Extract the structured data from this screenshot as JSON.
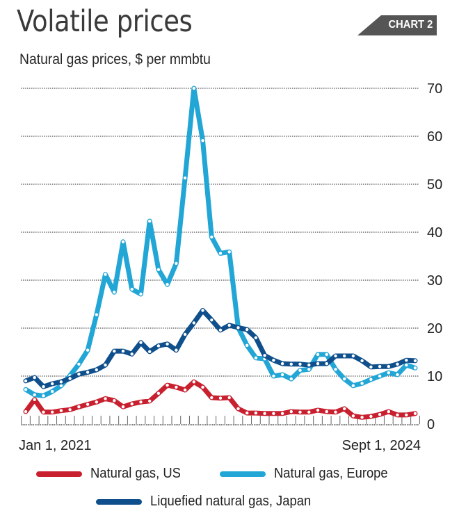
{
  "header": {
    "title": "Volatile prices",
    "badge": "CHART 2",
    "subtitle": "Natural gas prices, $ per mmbtu"
  },
  "colors": {
    "us": "#c8202f",
    "europe": "#22a6d6",
    "japan": "#0f4f8c",
    "badge": "#555555",
    "grid": "#555555"
  },
  "chart_data": {
    "type": "line",
    "title": "Volatile prices",
    "subtitle": "Natural gas prices, $ per mmbtu",
    "xlabel": "",
    "ylabel": "$ per mmbtu",
    "x_start": "Jan 1, 2021",
    "x_end": "Sept 1, 2024",
    "x_frequency": "monthly",
    "x_tick_labels": [
      "Jan 1, 2021",
      "Sept 1, 2024"
    ],
    "ylim": [
      0,
      70
    ],
    "y_ticks": [
      0,
      10,
      20,
      30,
      40,
      50,
      60,
      70
    ],
    "y_axis_side": "right",
    "grid": true,
    "legend_position": "bottom",
    "series": [
      {
        "name": "Natural gas, US",
        "color": "#c8202f",
        "values": [
          2.6,
          5.1,
          2.5,
          2.5,
          2.8,
          3.0,
          3.6,
          4.1,
          4.6,
          5.3,
          4.9,
          3.6,
          4.2,
          4.6,
          4.8,
          6.4,
          8.1,
          7.7,
          7.1,
          8.8,
          7.7,
          5.5,
          5.4,
          5.5,
          3.2,
          2.3,
          2.3,
          2.2,
          2.2,
          2.2,
          2.6,
          2.5,
          2.5,
          2.9,
          2.6,
          2.5,
          3.2,
          1.7,
          1.4,
          1.6,
          2.0,
          2.6,
          1.9,
          1.9,
          2.2
        ]
      },
      {
        "name": "Natural gas, Europe",
        "color": "#22a6d6",
        "values": [
          7.2,
          6.1,
          5.9,
          6.8,
          8.0,
          10.1,
          12.5,
          15.4,
          22.8,
          31.2,
          27.5,
          38.0,
          28.1,
          27.1,
          42.3,
          32.2,
          29.1,
          33.5,
          51.3,
          70.0,
          59.1,
          39.0,
          35.6,
          35.9,
          20.1,
          16.4,
          13.8,
          13.6,
          10.0,
          10.3,
          9.4,
          11.2,
          11.4,
          14.5,
          14.5,
          11.4,
          9.4,
          8.0,
          8.5,
          9.3,
          10.0,
          10.7,
          10.3,
          12.3,
          11.7
        ]
      },
      {
        "name": "Liquefied natural gas, Japan",
        "color": "#0f4f8c",
        "values": [
          9.0,
          9.7,
          7.8,
          8.4,
          8.8,
          9.5,
          10.4,
          10.8,
          11.3,
          12.3,
          15.2,
          15.2,
          14.6,
          17.0,
          15.1,
          16.3,
          16.7,
          15.4,
          18.7,
          21.1,
          23.7,
          21.7,
          19.6,
          20.6,
          20.1,
          19.7,
          18.0,
          14.3,
          13.3,
          12.6,
          12.5,
          12.5,
          12.3,
          12.6,
          12.6,
          14.2,
          14.2,
          14.2,
          13.2,
          11.9,
          12.0,
          12.0,
          12.5,
          13.3,
          13.2
        ]
      }
    ]
  },
  "legend": {
    "items": [
      {
        "label": "Natural gas, US",
        "color": "#c8202f"
      },
      {
        "label": "Natural gas, Europe",
        "color": "#22a6d6"
      },
      {
        "label": "Liquefied natural gas, Japan",
        "color": "#0f4f8c"
      }
    ]
  }
}
